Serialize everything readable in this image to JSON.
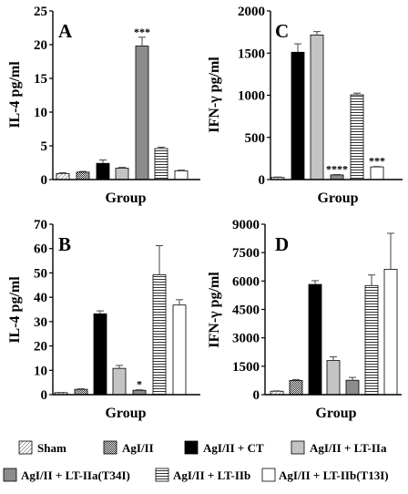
{
  "chart_data": [
    {
      "type": "bar",
      "panel": "A",
      "ylabel": "IL-4 pg/ml",
      "xlabel": "Group",
      "ylim": [
        0,
        25
      ],
      "yticks": [
        "0",
        "5",
        "10",
        "15",
        "20",
        "25"
      ],
      "values": [
        0.9,
        1.1,
        2.4,
        1.7,
        19.8,
        4.6,
        1.3
      ],
      "errors": [
        0.1,
        0.1,
        0.5,
        0.1,
        1.3,
        0.2,
        0.1
      ],
      "significance": [
        "",
        "",
        "",
        "",
        "***",
        "",
        ""
      ]
    },
    {
      "type": "bar",
      "panel": "C",
      "ylabel": "IFN-γ pg/ml",
      "xlabel": "Group",
      "ylim": [
        0,
        2000
      ],
      "yticks": [
        "0",
        "500",
        "1000",
        "1500",
        "2000"
      ],
      "values": [
        25,
        1510,
        1715,
        55,
        1005,
        150
      ],
      "errors": [
        5,
        100,
        40,
        5,
        20,
        5
      ],
      "significance": [
        "",
        "",
        "",
        "****",
        "",
        "***"
      ]
    },
    {
      "type": "bar",
      "panel": "B",
      "ylabel": "IL-4 pg/ml",
      "xlabel": "Group",
      "ylim": [
        0,
        70
      ],
      "yticks": [
        "0",
        "10",
        "20",
        "30",
        "40",
        "50",
        "60",
        "70"
      ],
      "values": [
        0.8,
        2.2,
        33.2,
        10.8,
        1.8,
        49.2,
        36.8
      ],
      "errors": [
        0.1,
        0.2,
        1.2,
        1.2,
        0.2,
        12,
        2.2
      ],
      "significance": [
        "",
        "",
        "",
        "",
        "*",
        "",
        ""
      ]
    },
    {
      "type": "bar",
      "panel": "D",
      "ylabel": "IFN-γ pg/ml",
      "xlabel": "Group",
      "ylim": [
        0,
        9000
      ],
      "yticks": [
        "0",
        "1500",
        "3000",
        "4500",
        "6000",
        "7500",
        "9000"
      ],
      "values": [
        180,
        750,
        5820,
        1800,
        760,
        5760,
        6620
      ],
      "errors": [
        20,
        40,
        200,
        200,
        150,
        560,
        1900
      ],
      "significance": [
        "",
        "",
        "",
        "",
        "",
        "",
        ""
      ]
    }
  ],
  "legend": [
    {
      "label": "Sham",
      "pattern": "diag"
    },
    {
      "label": "AgI/II",
      "pattern": "dots"
    },
    {
      "label": "AgI/II + CT",
      "pattern": "black"
    },
    {
      "label": "AgI/II + LT-IIa",
      "pattern": "lightgray"
    },
    {
      "label": "AgI/II + LT-IIa(T34I)",
      "pattern": "gray"
    },
    {
      "label": "AgI/II + LT-IIb",
      "pattern": "hlines"
    },
    {
      "label": "AgI/II + LT-IIb(T13I)",
      "pattern": "white"
    }
  ],
  "colors": {
    "black": "#000000",
    "lightgray": "#c4c4c4",
    "gray": "#8c8c8c",
    "white": "#ffffff"
  }
}
